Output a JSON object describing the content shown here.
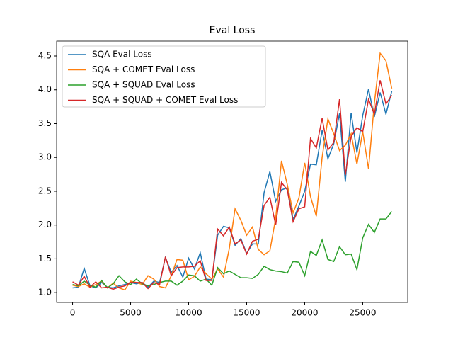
{
  "chart_data": {
    "type": "line",
    "title": "Eval Loss",
    "x": [
      0,
      500,
      1000,
      1500,
      2000,
      2500,
      3000,
      3500,
      4000,
      4500,
      5000,
      5500,
      6000,
      6500,
      7000,
      7500,
      8000,
      8500,
      9000,
      9500,
      10000,
      10500,
      11000,
      11500,
      12000,
      12500,
      13000,
      13500,
      14000,
      14500,
      15000,
      15500,
      16000,
      16500,
      17000,
      17500,
      18000,
      18500,
      19000,
      19500,
      20000,
      20500,
      21000,
      21500,
      22000,
      22500,
      23000,
      23500,
      24000,
      24500,
      25000,
      25500,
      26000,
      26500,
      27000,
      27500
    ],
    "series": [
      {
        "name": "SQA Eval Loss",
        "color": "#1f77b4",
        "values": [
          1.07,
          1.08,
          1.36,
          1.1,
          1.07,
          1.15,
          1.08,
          1.07,
          1.1,
          1.12,
          1.15,
          1.13,
          1.15,
          1.08,
          1.17,
          1.15,
          1.52,
          1.3,
          1.4,
          1.23,
          1.51,
          1.35,
          1.59,
          1.2,
          1.19,
          1.85,
          1.98,
          1.96,
          1.7,
          1.8,
          1.58,
          1.72,
          1.72,
          2.48,
          2.79,
          2.35,
          2.52,
          2.55,
          2.08,
          2.28,
          2.5,
          2.9,
          2.89,
          3.4,
          2.98,
          3.2,
          3.65,
          2.64,
          3.66,
          3.07,
          3.62,
          4.01,
          3.6,
          3.96,
          3.64,
          3.98
        ]
      },
      {
        "name": "SQA + COMET Eval Loss",
        "color": "#ff7f0e",
        "values": [
          1.11,
          1.09,
          1.13,
          1.08,
          1.12,
          1.17,
          1.07,
          1.14,
          1.07,
          1.04,
          1.17,
          1.15,
          1.12,
          1.25,
          1.2,
          1.09,
          1.07,
          1.25,
          1.49,
          1.48,
          1.19,
          1.24,
          1.38,
          1.28,
          1.2,
          1.35,
          1.23,
          1.65,
          2.24,
          2.07,
          1.85,
          1.97,
          1.64,
          1.56,
          1.62,
          2.1,
          2.95,
          2.6,
          2.18,
          2.4,
          2.92,
          2.42,
          2.13,
          3.0,
          3.57,
          3.35,
          3.1,
          3.18,
          3.35,
          2.9,
          3.38,
          2.83,
          3.8,
          4.54,
          4.43,
          4.02
        ]
      },
      {
        "name": "SQA + SQUAD Eval Loss",
        "color": "#2ca02c",
        "values": [
          1.12,
          1.1,
          1.17,
          1.11,
          1.08,
          1.18,
          1.07,
          1.13,
          1.25,
          1.16,
          1.12,
          1.2,
          1.13,
          1.1,
          1.12,
          1.15,
          1.17,
          1.17,
          1.11,
          1.17,
          1.26,
          1.25,
          1.17,
          1.2,
          1.11,
          1.37,
          1.28,
          1.32,
          1.27,
          1.22,
          1.22,
          1.21,
          1.27,
          1.39,
          1.34,
          1.32,
          1.31,
          1.29,
          1.46,
          1.45,
          1.25,
          1.61,
          1.55,
          1.78,
          1.49,
          1.46,
          1.68,
          1.56,
          1.57,
          1.34,
          1.81,
          2.01,
          1.89,
          2.09,
          2.09,
          2.2
        ]
      },
      {
        "name": "SQA + SQUAD + COMET Eval Loss",
        "color": "#d62728",
        "values": [
          1.16,
          1.11,
          1.24,
          1.08,
          1.16,
          1.07,
          1.08,
          1.05,
          1.08,
          1.1,
          1.15,
          1.15,
          1.15,
          1.06,
          1.15,
          1.12,
          1.53,
          1.25,
          1.37,
          1.38,
          1.38,
          1.39,
          1.47,
          1.18,
          1.18,
          1.94,
          1.84,
          1.97,
          1.72,
          1.78,
          1.57,
          1.76,
          1.79,
          2.29,
          2.41,
          2.0,
          2.63,
          2.52,
          2.05,
          2.24,
          2.27,
          3.28,
          3.14,
          3.58,
          3.11,
          3.22,
          3.86,
          2.74,
          3.31,
          3.44,
          3.38,
          3.86,
          3.64,
          4.14,
          3.79,
          3.92
        ]
      }
    ],
    "xlim": [
      -1375,
      28875
    ],
    "ylim": [
      0.855,
      4.72
    ],
    "xticks": [
      0,
      5000,
      10000,
      15000,
      20000,
      25000
    ],
    "yticks": [
      {
        "value": 1,
        "label": "1.0"
      },
      1.5,
      {
        "value": 2,
        "label": "2.0"
      },
      2.5,
      {
        "value": 3,
        "label": "3.0"
      },
      3.5,
      {
        "value": 4,
        "label": "4.0"
      },
      4.5
    ],
    "legend": "upper left",
    "grid": false
  }
}
